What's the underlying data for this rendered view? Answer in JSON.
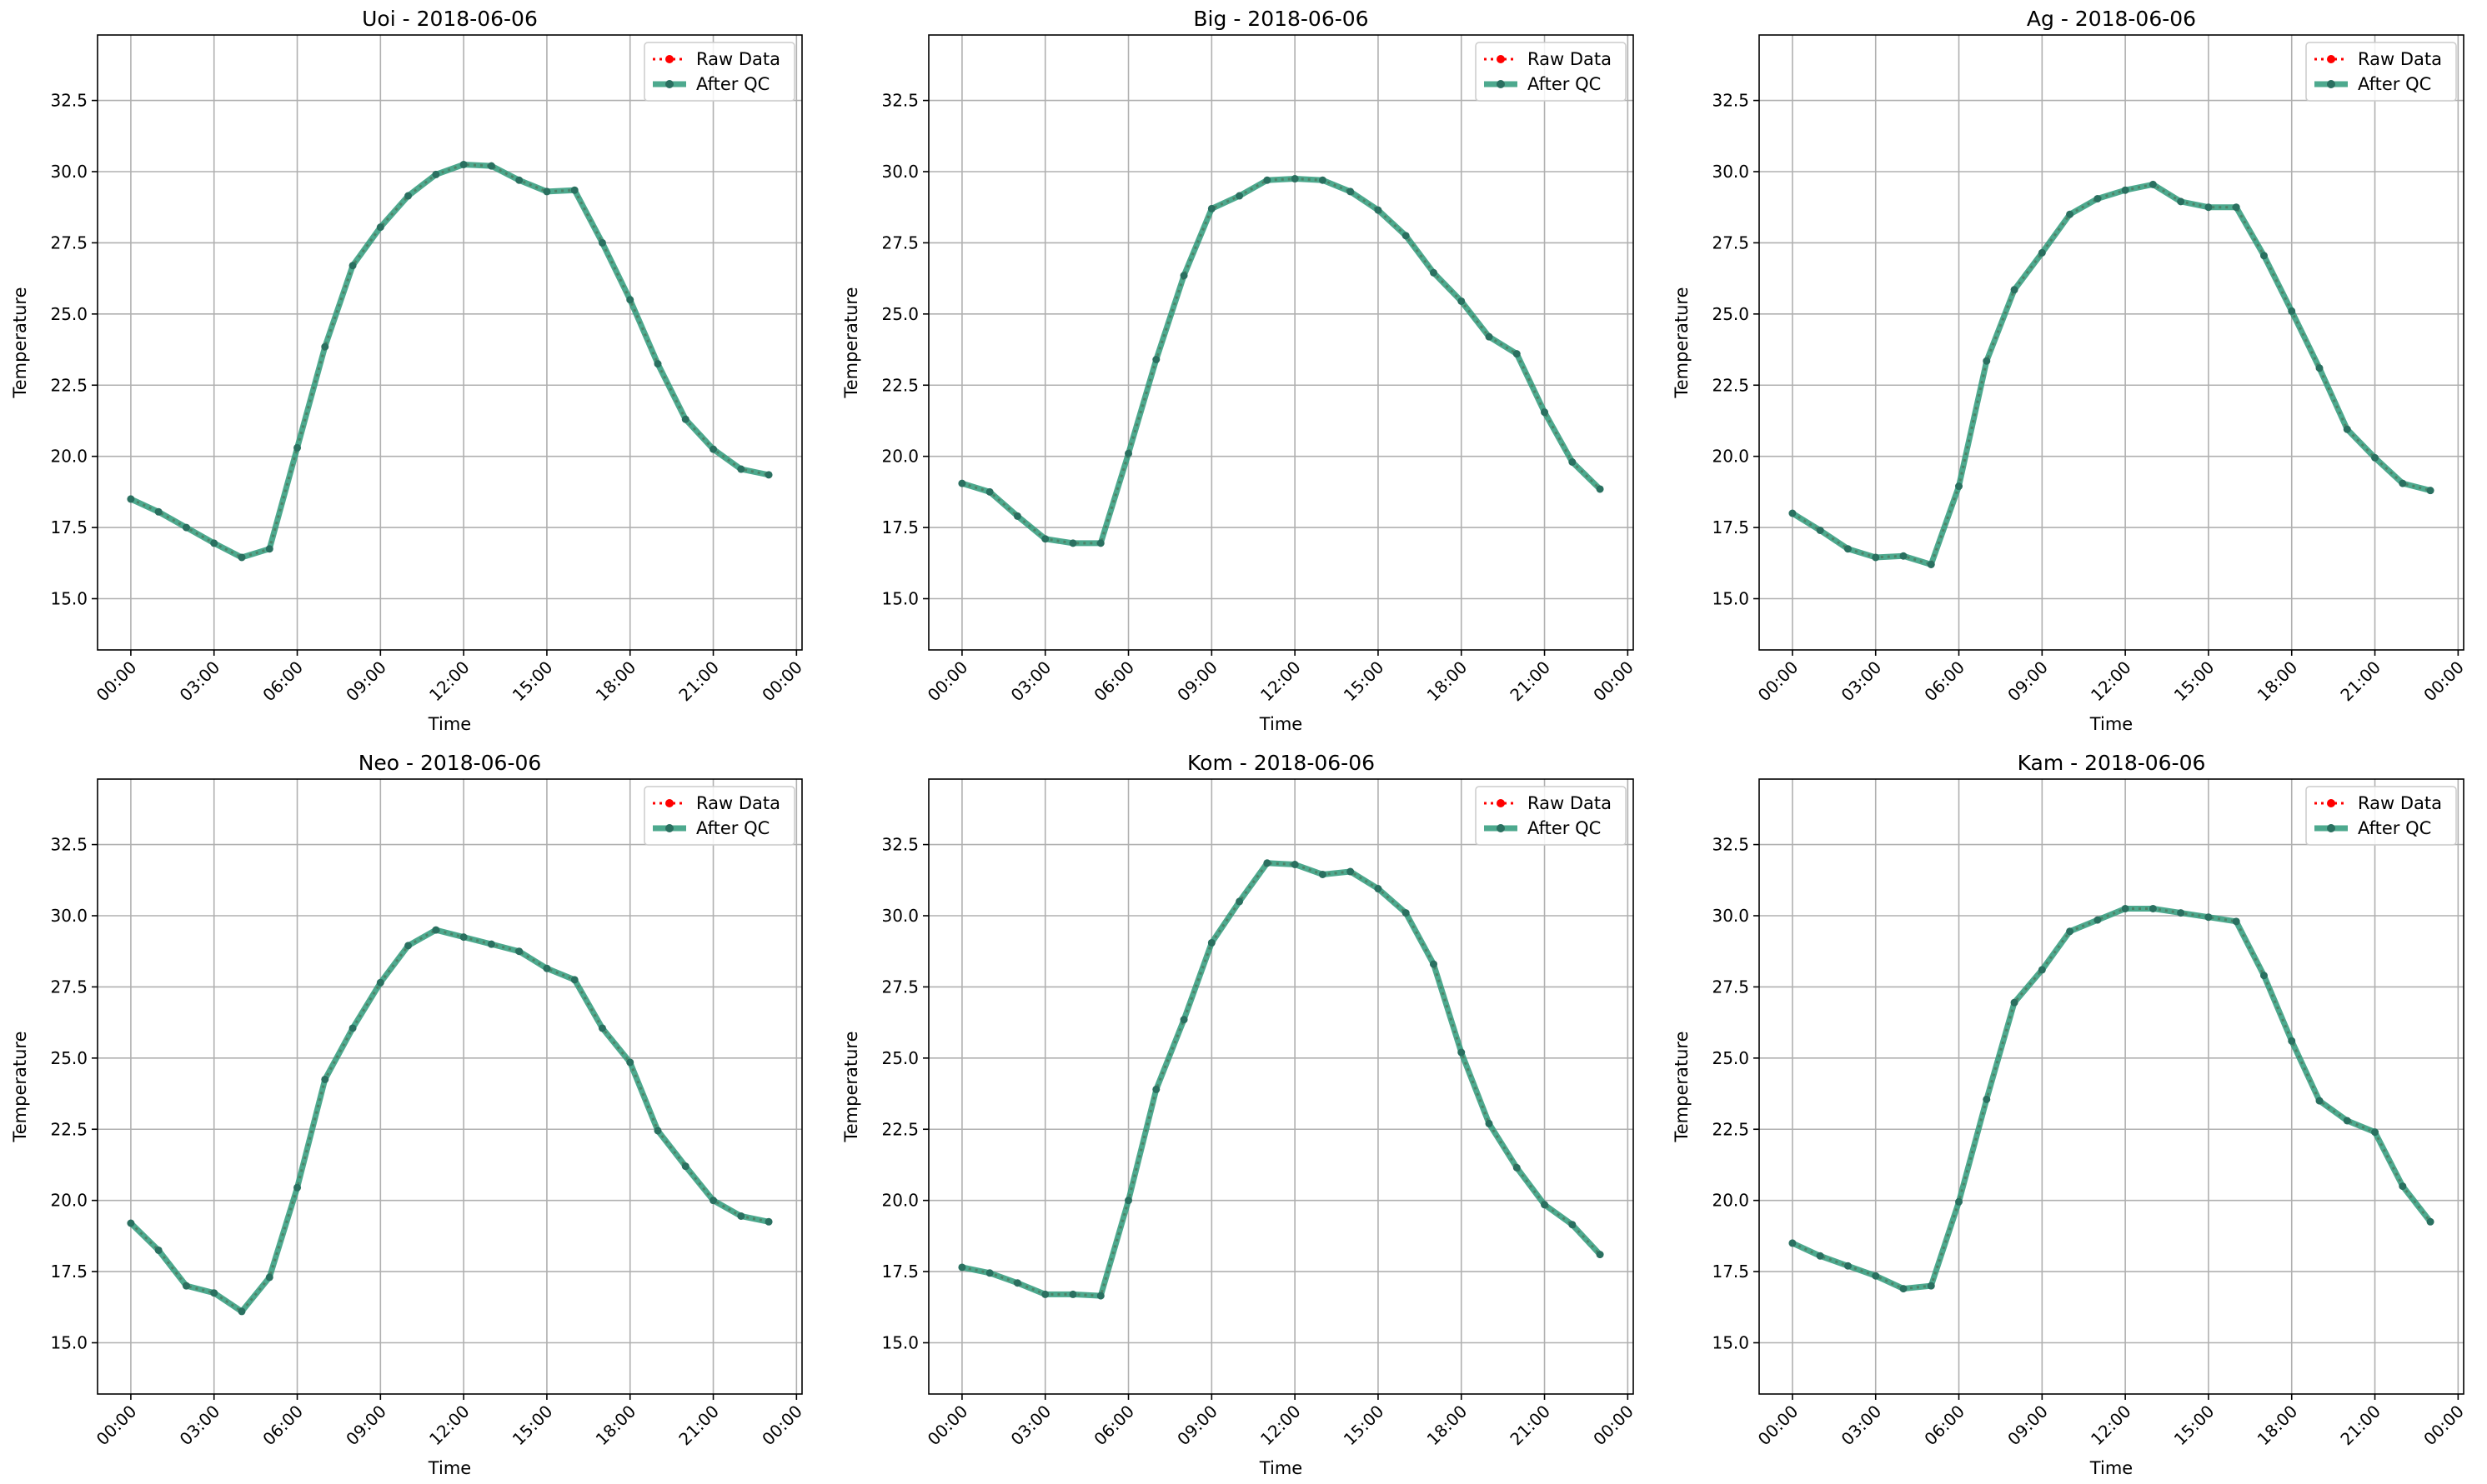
{
  "colors": {
    "raw": "#ff0000",
    "qc": "#2e9a7a",
    "qc_marker": "#2a7060",
    "grid": "#b0b0b0",
    "axis": "#000000"
  },
  "legend": {
    "raw": "Raw Data",
    "qc": "After QC",
    "placement": "upper-right"
  },
  "chart_data": [
    {
      "type": "line",
      "title": "Uoi - 2018-06-06",
      "xlabel": "Time",
      "ylabel": "Temperature",
      "xlim": [
        -1.2,
        24.2
      ],
      "ylim": [
        13.2,
        34.8
      ],
      "grid": true,
      "xticks": [
        0,
        3,
        6,
        9,
        12,
        15,
        18,
        21,
        24
      ],
      "xticklabels": [
        "00:00",
        "03:00",
        "06:00",
        "09:00",
        "12:00",
        "15:00",
        "18:00",
        "21:00",
        "00:00"
      ],
      "yticks": [
        15.0,
        17.5,
        20.0,
        22.5,
        25.0,
        27.5,
        30.0,
        32.5
      ],
      "yticklabels": [
        "15.0",
        "17.5",
        "20.0",
        "22.5",
        "25.0",
        "27.5",
        "30.0",
        "32.5"
      ],
      "x": [
        0,
        1,
        2,
        3,
        4,
        5,
        6,
        7,
        8,
        9,
        10,
        11,
        12,
        13,
        14,
        15,
        16,
        17,
        18,
        19,
        20,
        21,
        22,
        23
      ],
      "series": [
        {
          "name": "Raw Data",
          "values": [
            18.5,
            18.05,
            17.5,
            16.95,
            16.45,
            16.75,
            20.3,
            23.85,
            26.7,
            28.05,
            29.15,
            29.9,
            30.25,
            30.2,
            29.7,
            29.3,
            29.35,
            27.5,
            25.5,
            23.25,
            21.3,
            20.25,
            19.55,
            19.35
          ]
        },
        {
          "name": "After QC",
          "values": [
            18.5,
            18.05,
            17.5,
            16.95,
            16.45,
            16.75,
            20.3,
            23.85,
            26.7,
            28.05,
            29.15,
            29.9,
            30.25,
            30.2,
            29.7,
            29.3,
            29.35,
            27.5,
            25.5,
            23.25,
            21.3,
            20.25,
            19.55,
            19.35
          ]
        }
      ]
    },
    {
      "type": "line",
      "title": "Big - 2018-06-06",
      "xlabel": "Time",
      "ylabel": "Temperature",
      "xlim": [
        -1.2,
        24.2
      ],
      "ylim": [
        13.2,
        34.8
      ],
      "grid": true,
      "xticks": [
        0,
        3,
        6,
        9,
        12,
        15,
        18,
        21,
        24
      ],
      "xticklabels": [
        "00:00",
        "03:00",
        "06:00",
        "09:00",
        "12:00",
        "15:00",
        "18:00",
        "21:00",
        "00:00"
      ],
      "yticks": [
        15.0,
        17.5,
        20.0,
        22.5,
        25.0,
        27.5,
        30.0,
        32.5
      ],
      "yticklabels": [
        "15.0",
        "17.5",
        "20.0",
        "22.5",
        "25.0",
        "27.5",
        "30.0",
        "32.5"
      ],
      "x": [
        0,
        1,
        2,
        3,
        4,
        5,
        6,
        7,
        8,
        9,
        10,
        11,
        12,
        13,
        14,
        15,
        16,
        17,
        18,
        19,
        20,
        21,
        22,
        23
      ],
      "series": [
        {
          "name": "Raw Data",
          "values": [
            19.05,
            18.75,
            17.9,
            17.1,
            16.95,
            16.95,
            20.1,
            23.4,
            26.35,
            28.7,
            29.15,
            29.7,
            29.75,
            29.7,
            29.3,
            28.65,
            27.75,
            26.45,
            25.45,
            24.2,
            23.6,
            21.55,
            19.8,
            18.85
          ]
        },
        {
          "name": "After QC",
          "values": [
            19.05,
            18.75,
            17.9,
            17.1,
            16.95,
            16.95,
            20.1,
            23.4,
            26.35,
            28.7,
            29.15,
            29.7,
            29.75,
            29.7,
            29.3,
            28.65,
            27.75,
            26.45,
            25.45,
            24.2,
            23.6,
            21.55,
            19.8,
            18.85
          ]
        }
      ]
    },
    {
      "type": "line",
      "title": "Ag - 2018-06-06",
      "xlabel": "Time",
      "ylabel": "Temperature",
      "xlim": [
        -1.2,
        24.2
      ],
      "ylim": [
        13.2,
        34.8
      ],
      "grid": true,
      "xticks": [
        0,
        3,
        6,
        9,
        12,
        15,
        18,
        21,
        24
      ],
      "xticklabels": [
        "00:00",
        "03:00",
        "06:00",
        "09:00",
        "12:00",
        "15:00",
        "18:00",
        "21:00",
        "00:00"
      ],
      "yticks": [
        15.0,
        17.5,
        20.0,
        22.5,
        25.0,
        27.5,
        30.0,
        32.5
      ],
      "yticklabels": [
        "15.0",
        "17.5",
        "20.0",
        "22.5",
        "25.0",
        "27.5",
        "30.0",
        "32.5"
      ],
      "x": [
        0,
        1,
        2,
        3,
        4,
        5,
        6,
        7,
        8,
        9,
        10,
        11,
        12,
        13,
        14,
        15,
        16,
        17,
        18,
        19,
        20,
        21,
        22,
        23
      ],
      "series": [
        {
          "name": "Raw Data",
          "values": [
            18.0,
            17.4,
            16.75,
            16.45,
            16.5,
            16.2,
            18.95,
            23.35,
            25.85,
            27.15,
            28.5,
            29.05,
            29.35,
            29.55,
            28.95,
            28.75,
            28.75,
            27.05,
            25.1,
            23.1,
            20.95,
            19.95,
            19.05,
            18.8
          ]
        },
        {
          "name": "After QC",
          "values": [
            18.0,
            17.4,
            16.75,
            16.45,
            16.5,
            16.2,
            18.95,
            23.35,
            25.85,
            27.15,
            28.5,
            29.05,
            29.35,
            29.55,
            28.95,
            28.75,
            28.75,
            27.05,
            25.1,
            23.1,
            20.95,
            19.95,
            19.05,
            18.8
          ]
        }
      ]
    },
    {
      "type": "line",
      "title": "Neo - 2018-06-06",
      "xlabel": "Time",
      "ylabel": "Temperature",
      "xlim": [
        -1.2,
        24.2
      ],
      "ylim": [
        13.2,
        34.8
      ],
      "grid": true,
      "xticks": [
        0,
        3,
        6,
        9,
        12,
        15,
        18,
        21,
        24
      ],
      "xticklabels": [
        "00:00",
        "03:00",
        "06:00",
        "09:00",
        "12:00",
        "15:00",
        "18:00",
        "21:00",
        "00:00"
      ],
      "yticks": [
        15.0,
        17.5,
        20.0,
        22.5,
        25.0,
        27.5,
        30.0,
        32.5
      ],
      "yticklabels": [
        "15.0",
        "17.5",
        "20.0",
        "22.5",
        "25.0",
        "27.5",
        "30.0",
        "32.5"
      ],
      "x": [
        0,
        1,
        2,
        3,
        4,
        5,
        6,
        7,
        8,
        9,
        10,
        11,
        12,
        13,
        14,
        15,
        16,
        17,
        18,
        19,
        20,
        21,
        22,
        23
      ],
      "series": [
        {
          "name": "Raw Data",
          "values": [
            19.2,
            18.25,
            17.0,
            16.75,
            16.1,
            17.3,
            20.45,
            24.25,
            26.05,
            27.65,
            28.95,
            29.5,
            29.25,
            29.0,
            28.75,
            28.15,
            27.75,
            26.05,
            24.85,
            22.45,
            21.2,
            20.0,
            19.45,
            19.25
          ]
        },
        {
          "name": "After QC",
          "values": [
            19.2,
            18.25,
            17.0,
            16.75,
            16.1,
            17.3,
            20.45,
            24.25,
            26.05,
            27.65,
            28.95,
            29.5,
            29.25,
            29.0,
            28.75,
            28.15,
            27.75,
            26.05,
            24.85,
            22.45,
            21.2,
            20.0,
            19.45,
            19.25
          ]
        }
      ]
    },
    {
      "type": "line",
      "title": "Kom - 2018-06-06",
      "xlabel": "Time",
      "ylabel": "Temperature",
      "xlim": [
        -1.2,
        24.2
      ],
      "ylim": [
        13.2,
        34.8
      ],
      "grid": true,
      "xticks": [
        0,
        3,
        6,
        9,
        12,
        15,
        18,
        21,
        24
      ],
      "xticklabels": [
        "00:00",
        "03:00",
        "06:00",
        "09:00",
        "12:00",
        "15:00",
        "18:00",
        "21:00",
        "00:00"
      ],
      "yticks": [
        15.0,
        17.5,
        20.0,
        22.5,
        25.0,
        27.5,
        30.0,
        32.5
      ],
      "yticklabels": [
        "15.0",
        "17.5",
        "20.0",
        "22.5",
        "25.0",
        "27.5",
        "30.0",
        "32.5"
      ],
      "x": [
        0,
        1,
        2,
        3,
        4,
        5,
        6,
        7,
        8,
        9,
        10,
        11,
        12,
        13,
        14,
        15,
        16,
        17,
        18,
        19,
        20,
        21,
        22,
        23
      ],
      "series": [
        {
          "name": "Raw Data",
          "values": [
            17.65,
            17.45,
            17.1,
            16.7,
            16.7,
            16.65,
            20.0,
            23.9,
            26.35,
            29.05,
            30.5,
            31.85,
            31.8,
            31.45,
            31.55,
            30.95,
            30.1,
            28.3,
            25.2,
            22.7,
            21.15,
            19.85,
            19.15,
            18.1
          ]
        },
        {
          "name": "After QC",
          "values": [
            17.65,
            17.45,
            17.1,
            16.7,
            16.7,
            16.65,
            20.0,
            23.9,
            26.35,
            29.05,
            30.5,
            31.85,
            31.8,
            31.45,
            31.55,
            30.95,
            30.1,
            28.3,
            25.2,
            22.7,
            21.15,
            19.85,
            19.15,
            18.1
          ]
        }
      ]
    },
    {
      "type": "line",
      "title": "Kam - 2018-06-06",
      "xlabel": "Time",
      "ylabel": "Temperature",
      "xlim": [
        -1.2,
        24.2
      ],
      "ylim": [
        13.2,
        34.8
      ],
      "grid": true,
      "xticks": [
        0,
        3,
        6,
        9,
        12,
        15,
        18,
        21,
        24
      ],
      "xticklabels": [
        "00:00",
        "03:00",
        "06:00",
        "09:00",
        "12:00",
        "15:00",
        "18:00",
        "21:00",
        "00:00"
      ],
      "yticks": [
        15.0,
        17.5,
        20.0,
        22.5,
        25.0,
        27.5,
        30.0,
        32.5
      ],
      "yticklabels": [
        "15.0",
        "17.5",
        "20.0",
        "22.5",
        "25.0",
        "27.5",
        "30.0",
        "32.5"
      ],
      "x": [
        0,
        1,
        2,
        3,
        4,
        5,
        6,
        7,
        8,
        9,
        10,
        11,
        12,
        13,
        14,
        15,
        16,
        17,
        18,
        19,
        20,
        21,
        22,
        23
      ],
      "series": [
        {
          "name": "Raw Data",
          "values": [
            18.5,
            18.05,
            17.7,
            17.35,
            16.9,
            17.0,
            19.95,
            23.55,
            26.95,
            28.1,
            29.45,
            29.85,
            30.25,
            30.25,
            30.1,
            29.95,
            29.8,
            27.9,
            25.6,
            23.5,
            22.8,
            22.4,
            20.5,
            19.25
          ]
        },
        {
          "name": "After QC",
          "values": [
            18.5,
            18.05,
            17.7,
            17.35,
            16.9,
            17.0,
            19.95,
            23.55,
            26.95,
            28.1,
            29.45,
            29.85,
            30.25,
            30.25,
            30.1,
            29.95,
            29.8,
            27.9,
            25.6,
            23.5,
            22.8,
            22.4,
            20.5,
            19.25
          ]
        }
      ]
    }
  ]
}
